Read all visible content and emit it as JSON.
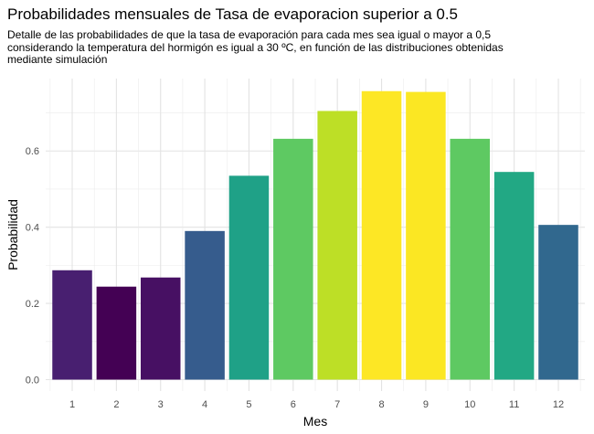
{
  "chart_data": {
    "type": "bar",
    "title": "Probabilidades mensuales de Tasa de evaporacion superior a 0.5",
    "subtitle_lines": [
      "Detalle de las probabilidades de que la tasa de evaporación para cada mes sea igual o mayor a 0,5",
      "considerando la temperatura del hormigón es igual a 30 ºC, en función de las distribuciones obtenidas",
      "mediante simulación"
    ],
    "xlabel": "Mes",
    "ylabel": "Probabilidad",
    "categories": [
      "1",
      "2",
      "3",
      "4",
      "5",
      "6",
      "7",
      "8",
      "9",
      "10",
      "11",
      "12"
    ],
    "values": [
      0.287,
      0.244,
      0.268,
      0.39,
      0.535,
      0.632,
      0.705,
      0.757,
      0.755,
      0.632,
      0.545,
      0.406
    ],
    "colors": [
      "#481f70",
      "#440154",
      "#471063",
      "#365c8d",
      "#1fa187",
      "#5ec962",
      "#bddf26",
      "#fde725",
      "#fbe723",
      "#5ec962",
      "#22a884",
      "#31688e"
    ],
    "ylim": [
      -0.03,
      0.79
    ],
    "yticks": [
      0.0,
      0.2,
      0.4,
      0.6
    ],
    "ytick_labels": [
      "0.0",
      "0.2",
      "0.4",
      "0.6"
    ],
    "grid": true,
    "legend": "none"
  }
}
